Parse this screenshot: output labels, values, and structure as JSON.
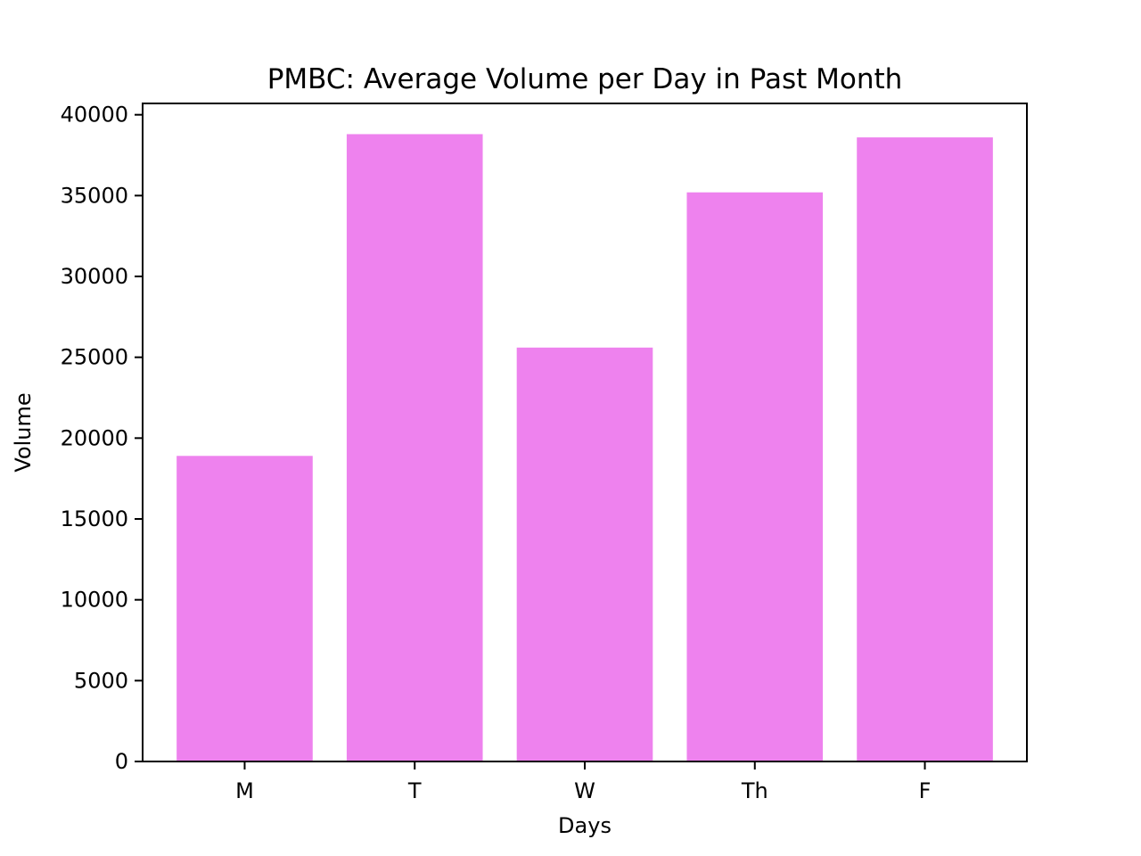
{
  "chart_data": {
    "type": "bar",
    "title": "PMBC: Average Volume per Day in Past Month",
    "xlabel": "Days",
    "ylabel": "Volume",
    "categories": [
      "M",
      "T",
      "W",
      "Th",
      "F"
    ],
    "values": [
      18900,
      38800,
      25600,
      35200,
      38600
    ],
    "ylim": [
      0,
      40700
    ],
    "yticks": [
      0,
      5000,
      10000,
      15000,
      20000,
      25000,
      30000,
      35000,
      40000
    ],
    "grid": false,
    "legend": "none",
    "bar_color": "#ee82ee"
  }
}
